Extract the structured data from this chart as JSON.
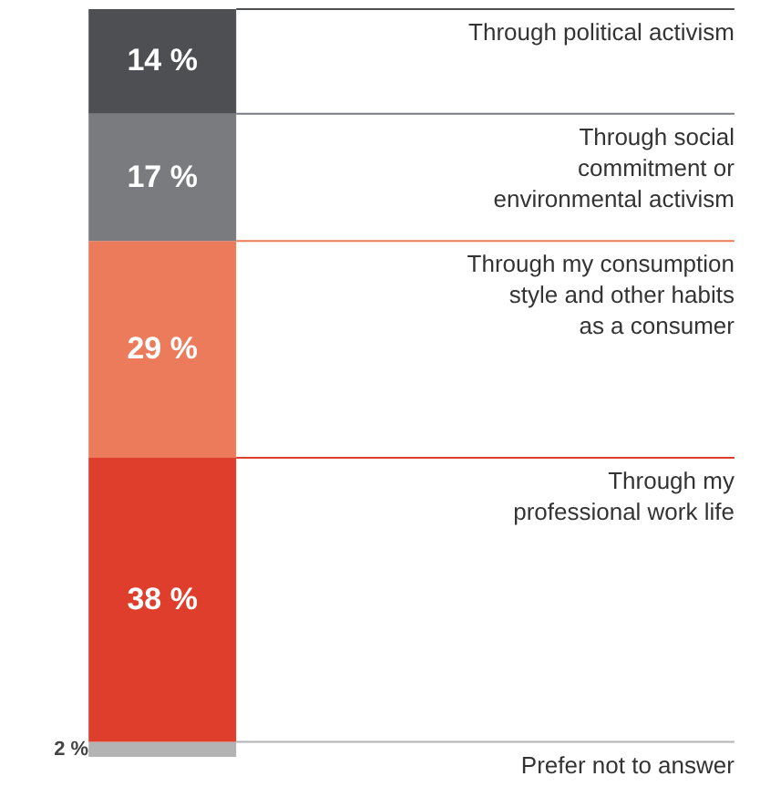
{
  "chart_data": {
    "type": "bar",
    "stacked": true,
    "categories": [
      null
    ],
    "series": [
      {
        "name": "Prefer not to answer",
        "color": "#b3b3b3",
        "values": [
          2
        ],
        "value_labels": [
          "2 %"
        ]
      },
      {
        "name": "Through my\nprofessional work life",
        "color": "#e03e2d",
        "values": [
          38
        ],
        "value_labels": [
          "38 %"
        ]
      },
      {
        "name": "Through my consumption\nstyle and other habits\nas a consumer",
        "color": "#ec7b5c",
        "values": [
          29
        ],
        "value_labels": [
          "29 %"
        ]
      },
      {
        "name": "Through social\ncommitment or\nenvironmental activism",
        "color": "#7a7b7f",
        "values": [
          17
        ],
        "value_labels": [
          "17 %"
        ]
      },
      {
        "name": "Through political activism",
        "color": "#4d4f53",
        "values": [
          14
        ],
        "value_labels": [
          "14 %"
        ]
      }
    ]
  }
}
